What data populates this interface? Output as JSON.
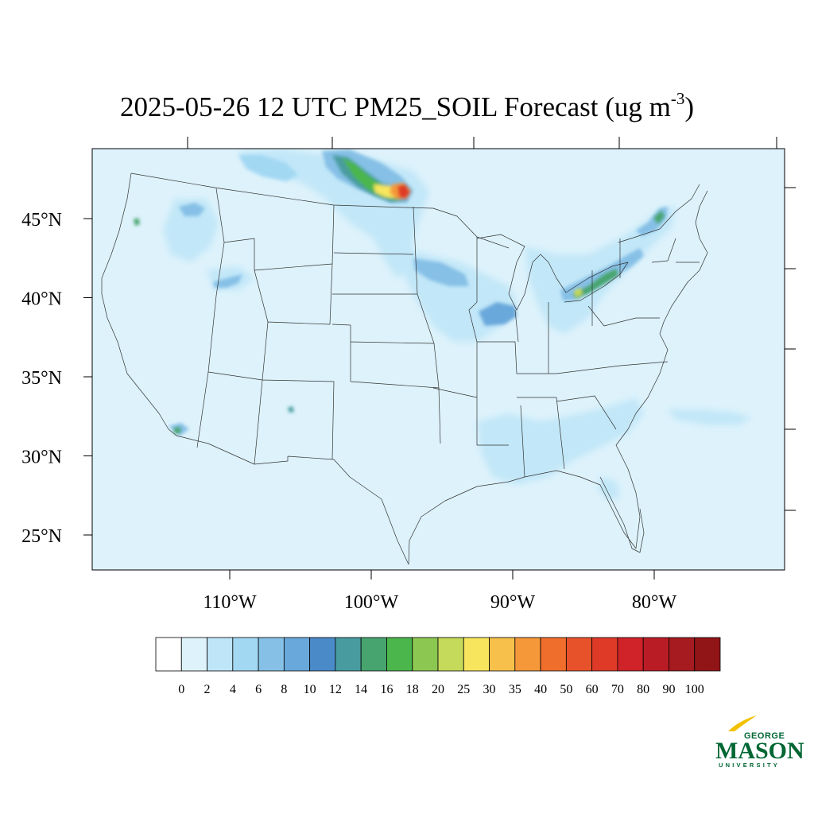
{
  "title": {
    "main": "2025-05-26 12 UTC PM25_SOIL Forecast (ug m",
    "exponent": "-3",
    "close": ")"
  },
  "map": {
    "extent": {
      "lon_min": -119.2,
      "lon_max": -70.4,
      "lat_min": 22.6,
      "lat_max": 49.4
    },
    "lat_ticks": [
      {
        "value": 45,
        "label": "45°N"
      },
      {
        "value": 40,
        "label": "40°N"
      },
      {
        "value": 35,
        "label": "35°N"
      },
      {
        "value": 30,
        "label": "30°N"
      },
      {
        "value": 25,
        "label": "25°N"
      }
    ],
    "lon_ticks": [
      {
        "value": -110,
        "label": "110°W"
      },
      {
        "value": -100,
        "label": "100°W"
      },
      {
        "value": -90,
        "label": "90°W"
      },
      {
        "value": -80,
        "label": "80°W"
      }
    ],
    "background_color": "#ddf2fb",
    "region": "CONUS"
  },
  "colorbar": {
    "labels": [
      "0",
      "2",
      "4",
      "6",
      "8",
      "10",
      "12",
      "14",
      "16",
      "18",
      "20",
      "25",
      "30",
      "35",
      "40",
      "50",
      "60",
      "70",
      "80",
      "90",
      "100"
    ],
    "colors": [
      "#ffffff",
      "#ddf2fb",
      "#bfe6f8",
      "#a3d8f3",
      "#86c0e6",
      "#69a8db",
      "#4a8ac9",
      "#489c9f",
      "#47a46e",
      "#4bb64b",
      "#8cc752",
      "#c5d95a",
      "#f7e65d",
      "#f6c04b",
      "#f4983a",
      "#f06e2b",
      "#e8522b",
      "#df3a28",
      "#cf2229",
      "#b91c24",
      "#a51b20",
      "#911517"
    ]
  },
  "plumes": [
    {
      "id": "north-dakota-canada",
      "lon": -98.5,
      "lat": 47.2,
      "peak": 90
    },
    {
      "id": "red-river",
      "lon": -97.2,
      "lat": 46.8,
      "peak": 70
    },
    {
      "id": "lake-erie-ontario",
      "lon": -82.0,
      "lat": 42.5,
      "peak": 20
    },
    {
      "id": "quebec",
      "lon": -78.5,
      "lat": 45.5,
      "peak": 16
    },
    {
      "id": "iowa-illinois",
      "lon": -91.0,
      "lat": 40.9,
      "peak": 10
    },
    {
      "id": "southern-california",
      "lon": -116.9,
      "lat": 32.6,
      "peak": 16
    },
    {
      "id": "oregon",
      "lon": -123.0,
      "lat": 44.6,
      "peak": 16
    },
    {
      "id": "new-mexico",
      "lon": -106.8,
      "lat": 32.3,
      "peak": 14
    }
  ],
  "logo": {
    "line1": "GEORGE",
    "line2": "MASON",
    "line3": "UNIVERSITY",
    "color": "#006633",
    "accent": "#f2c100"
  }
}
